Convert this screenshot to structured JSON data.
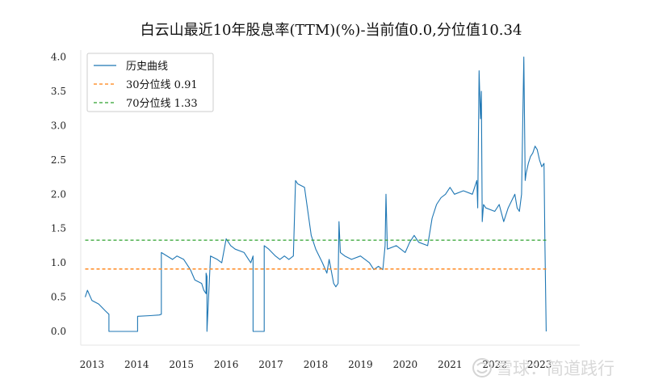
{
  "chart_data": {
    "type": "line",
    "title": "白云山最近10年股息率(TTM)(%)-当前值0.0,分位值10.34",
    "xlabel": "",
    "ylabel": "",
    "xlim": [
      2012.75,
      2023.9
    ],
    "ylim": [
      -0.2,
      4.1
    ],
    "x_ticks": [
      2013,
      2014,
      2015,
      2016,
      2017,
      2018,
      2019,
      2020,
      2021,
      2022,
      2023
    ],
    "x_tick_labels": [
      "2013",
      "2014",
      "2015",
      "2016",
      "2017",
      "2018",
      "2019",
      "2020",
      "2021",
      "2022",
      "2023"
    ],
    "y_ticks": [
      0.0,
      0.5,
      1.0,
      1.5,
      2.0,
      2.5,
      3.0,
      3.5,
      4.0
    ],
    "y_tick_labels": [
      "0.0",
      "0.5",
      "1.0",
      "1.5",
      "2.0",
      "2.5",
      "3.0",
      "3.5",
      "4.0"
    ],
    "grid": false,
    "legend_position": "top-left",
    "series": [
      {
        "name": "历史曲线",
        "color": "#1f77b4",
        "style": "solid",
        "x": [
          2012.85,
          2012.9,
          2013.0,
          2013.15,
          2013.3,
          2013.38,
          2013.38,
          2014.0,
          2014.02,
          2014.02,
          2014.3,
          2014.5,
          2014.55,
          2014.55,
          2014.8,
          2014.9,
          2015.05,
          2015.2,
          2015.3,
          2015.45,
          2015.5,
          2015.55,
          2015.55,
          2015.57,
          2015.57,
          2015.65,
          2015.8,
          2015.9,
          2016.0,
          2016.1,
          2016.2,
          2016.4,
          2016.5,
          2016.55,
          2016.6,
          2016.6,
          2016.85,
          2016.85,
          2016.95,
          2017.1,
          2017.2,
          2017.3,
          2017.4,
          2017.5,
          2017.55,
          2017.6,
          2017.75,
          2017.9,
          2018.0,
          2018.15,
          2018.25,
          2018.3,
          2018.4,
          2018.45,
          2018.5,
          2018.52,
          2018.55,
          2018.65,
          2018.8,
          2019.0,
          2019.2,
          2019.3,
          2019.4,
          2019.5,
          2019.55,
          2019.57,
          2019.6,
          2019.8,
          2020.0,
          2020.1,
          2020.2,
          2020.25,
          2020.3,
          2020.5,
          2020.6,
          2020.7,
          2020.8,
          2020.9,
          2021.0,
          2021.1,
          2021.3,
          2021.5,
          2021.6,
          2021.62,
          2021.65,
          2021.68,
          2021.7,
          2021.72,
          2021.75,
          2021.8,
          2022.0,
          2022.1,
          2022.2,
          2022.3,
          2022.45,
          2022.5,
          2022.55,
          2022.6,
          2022.65,
          2022.68,
          2022.7,
          2022.75,
          2022.8,
          2022.85,
          2022.9,
          2022.95,
          2023.0,
          2023.05,
          2023.1,
          2023.12,
          2023.15
        ],
        "y": [
          0.5,
          0.6,
          0.45,
          0.4,
          0.3,
          0.25,
          0.0,
          0.0,
          0.0,
          0.22,
          0.23,
          0.24,
          0.25,
          1.15,
          1.05,
          1.1,
          1.05,
          0.9,
          0.75,
          0.7,
          0.6,
          0.55,
          0.85,
          0.8,
          0.0,
          1.1,
          1.05,
          1.0,
          1.35,
          1.25,
          1.2,
          1.15,
          1.05,
          1.0,
          1.1,
          0.0,
          0.0,
          1.25,
          1.2,
          1.1,
          1.05,
          1.1,
          1.05,
          1.1,
          2.2,
          2.15,
          2.1,
          1.4,
          1.2,
          1.0,
          0.85,
          1.05,
          0.7,
          0.65,
          0.7,
          1.6,
          1.15,
          1.1,
          1.05,
          1.1,
          1.0,
          0.9,
          0.95,
          0.9,
          1.25,
          2.0,
          1.2,
          1.25,
          1.15,
          1.3,
          1.4,
          1.35,
          1.3,
          1.25,
          1.65,
          1.85,
          1.95,
          2.0,
          2.1,
          2.0,
          2.05,
          2.0,
          2.2,
          1.8,
          3.8,
          3.1,
          3.5,
          1.6,
          1.85,
          1.8,
          1.75,
          1.85,
          1.6,
          1.8,
          2.0,
          1.8,
          1.75,
          2.0,
          4.0,
          2.2,
          2.3,
          2.45,
          2.55,
          2.6,
          2.7,
          2.65,
          2.5,
          2.4,
          2.45,
          1.3,
          0.0
        ]
      },
      {
        "name": "30分位线 0.91",
        "color": "#ff7f0e",
        "style": "dashed",
        "x": [
          2012.85,
          2023.15
        ],
        "y": [
          0.91,
          0.91
        ]
      },
      {
        "name": "70分位线 1.33",
        "color": "#2ca02c",
        "style": "dashed",
        "x": [
          2012.85,
          2023.15
        ],
        "y": [
          1.33,
          1.33
        ]
      }
    ],
    "watermark": "雪球：简道践行"
  }
}
